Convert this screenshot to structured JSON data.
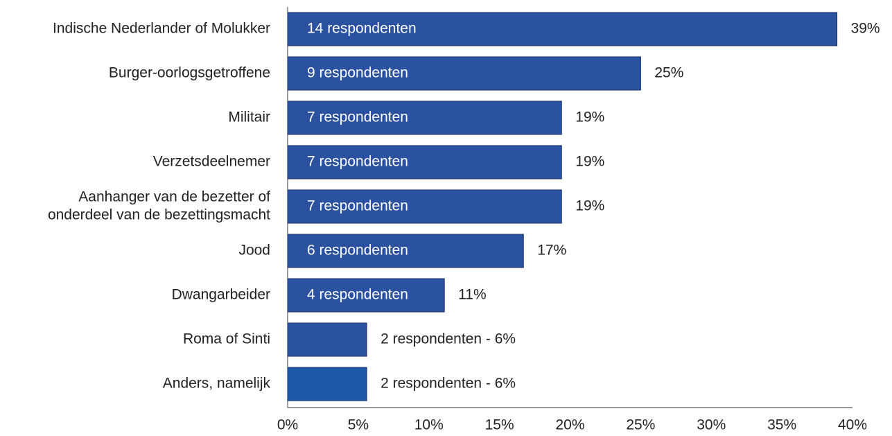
{
  "chart_data": {
    "type": "hbar",
    "categories": [
      [
        "Indische Nederlander of Molukker"
      ],
      [
        "Burger-oorlogsgetroffene"
      ],
      [
        "Militair"
      ],
      [
        "Verzetsdeelnemer"
      ],
      [
        "Aanhanger van de bezetter of",
        "onderdeel van de bezettingsmacht"
      ],
      [
        "Jood"
      ],
      [
        "Dwangarbeider"
      ],
      [
        "Roma of Sinti"
      ],
      [
        "Anders, namelijk"
      ]
    ],
    "values": [
      38.9,
      25,
      19.4,
      19.4,
      19.4,
      16.7,
      11.1,
      5.6,
      5.6
    ],
    "value_labels": [
      "39%",
      "25%",
      "19%",
      "19%",
      "19%",
      "17%",
      "11%",
      "2 respondenten - 6%",
      "2 respondenten - 6%"
    ],
    "bar_labels": [
      "14 respondenten",
      "9 respondenten",
      "7 respondenten",
      "7 respondenten",
      "7 respondenten",
      "6 respondenten",
      "4 respondenten",
      null,
      null
    ],
    "colors": [
      "#2a52a0",
      "#2a52a0",
      "#2a52a0",
      "#2a52a0",
      "#2a52a0",
      "#2a52a0",
      "#2a52a0",
      "#2a52a0",
      "#1c5aa8"
    ],
    "xlim": [
      0,
      40
    ],
    "xticks": [
      {
        "value": 0,
        "label": "0%"
      },
      {
        "value": 5,
        "label": "5%"
      },
      {
        "value": 10,
        "label": "10%"
      },
      {
        "value": 15,
        "label": "15%"
      },
      {
        "value": 20,
        "label": "20%"
      },
      {
        "value": 25,
        "label": "25%"
      },
      {
        "value": 30,
        "label": "30%"
      },
      {
        "value": 35,
        "label": "35%"
      },
      {
        "value": 40,
        "label": "40%"
      }
    ],
    "grid": false
  }
}
